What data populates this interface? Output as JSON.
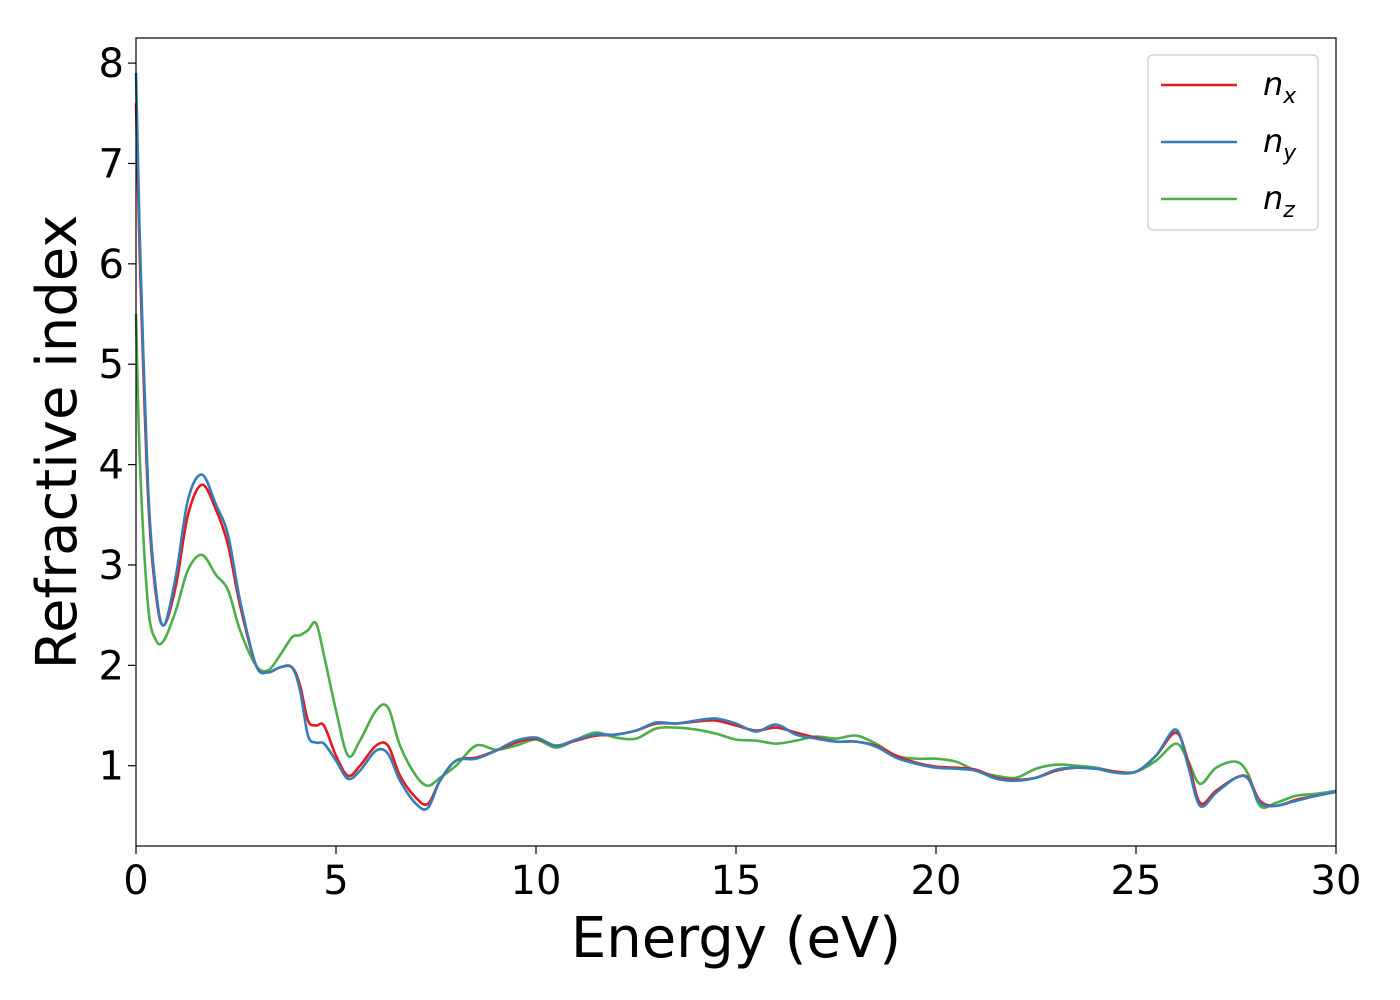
{
  "chart_data": {
    "type": "line",
    "xlabel": "Energy (eV)",
    "ylabel": "Refractive index",
    "xlim": [
      0,
      30
    ],
    "ylim": [
      0.2,
      8.25
    ],
    "xticks": [
      0,
      5,
      10,
      15,
      20,
      25,
      30
    ],
    "xtick_labels": [
      "0",
      "5",
      "10",
      "15",
      "20",
      "25",
      "30"
    ],
    "yticks": [
      1,
      2,
      3,
      4,
      5,
      6,
      7,
      8
    ],
    "ytick_labels": [
      "1",
      "2",
      "3",
      "4",
      "5",
      "6",
      "7",
      "8"
    ],
    "grid": false,
    "legend_position": "top-right",
    "series": [
      {
        "name": "n",
        "subscript": "x",
        "color": "#e41a1c",
        "x": [
          0,
          0.1,
          0.3,
          0.5,
          0.7,
          1.0,
          1.3,
          1.65,
          2.0,
          2.3,
          2.6,
          3.0,
          3.3,
          3.6,
          3.9,
          4.1,
          4.3,
          4.5,
          4.7,
          5.0,
          5.3,
          5.6,
          6.0,
          6.3,
          6.6,
          7.0,
          7.3,
          7.6,
          8.0,
          8.5,
          9.0,
          9.5,
          10.0,
          10.5,
          11.0,
          11.5,
          12.0,
          12.5,
          13.0,
          13.5,
          14.0,
          14.5,
          15.0,
          15.5,
          16.0,
          16.5,
          17.0,
          17.5,
          18.0,
          18.5,
          19.0,
          19.5,
          20.0,
          20.5,
          21.0,
          21.5,
          22.0,
          22.5,
          23.0,
          23.5,
          24.0,
          24.5,
          25.0,
          25.5,
          26.0,
          26.3,
          26.6,
          27.0,
          27.5,
          27.8,
          28.1,
          28.5,
          29.0,
          29.5,
          30.0
        ],
        "y": [
          7.6,
          6.0,
          3.7,
          2.7,
          2.4,
          2.8,
          3.5,
          3.8,
          3.55,
          3.2,
          2.6,
          2.0,
          1.93,
          1.98,
          1.98,
          1.8,
          1.45,
          1.4,
          1.4,
          1.1,
          0.9,
          1.0,
          1.2,
          1.2,
          0.9,
          0.68,
          0.62,
          0.85,
          1.05,
          1.08,
          1.15,
          1.23,
          1.27,
          1.2,
          1.25,
          1.3,
          1.31,
          1.35,
          1.42,
          1.42,
          1.44,
          1.45,
          1.4,
          1.35,
          1.38,
          1.33,
          1.28,
          1.24,
          1.24,
          1.2,
          1.1,
          1.03,
          0.99,
          0.98,
          0.96,
          0.88,
          0.86,
          0.88,
          0.95,
          0.98,
          0.97,
          0.94,
          0.94,
          1.1,
          1.33,
          1.05,
          0.63,
          0.75,
          0.88,
          0.88,
          0.65,
          0.6,
          0.66,
          0.7,
          0.74
        ]
      },
      {
        "name": "n",
        "subscript": "y",
        "color": "#377eb8",
        "x": [
          0,
          0.1,
          0.3,
          0.5,
          0.7,
          1.0,
          1.3,
          1.65,
          2.0,
          2.3,
          2.6,
          3.0,
          3.3,
          3.6,
          3.9,
          4.1,
          4.3,
          4.5,
          4.7,
          5.0,
          5.3,
          5.6,
          6.0,
          6.3,
          6.6,
          7.0,
          7.3,
          7.6,
          8.0,
          8.5,
          9.0,
          9.5,
          10.0,
          10.5,
          11.0,
          11.5,
          12.0,
          12.5,
          13.0,
          13.5,
          14.0,
          14.5,
          15.0,
          15.5,
          16.0,
          16.5,
          17.0,
          17.5,
          18.0,
          18.5,
          19.0,
          19.5,
          20.0,
          20.5,
          21.0,
          21.5,
          22.0,
          22.5,
          23.0,
          23.5,
          24.0,
          24.5,
          25.0,
          25.5,
          26.0,
          26.3,
          26.6,
          27.0,
          27.5,
          27.8,
          28.1,
          28.5,
          29.0,
          29.5,
          30.0
        ],
        "y": [
          7.9,
          6.2,
          3.8,
          2.75,
          2.4,
          2.9,
          3.65,
          3.9,
          3.6,
          3.3,
          2.65,
          2.0,
          1.93,
          1.98,
          1.98,
          1.75,
          1.3,
          1.23,
          1.22,
          1.05,
          0.87,
          0.95,
          1.15,
          1.12,
          0.85,
          0.62,
          0.58,
          0.85,
          1.05,
          1.07,
          1.15,
          1.25,
          1.28,
          1.2,
          1.26,
          1.31,
          1.31,
          1.35,
          1.43,
          1.42,
          1.45,
          1.47,
          1.42,
          1.34,
          1.41,
          1.31,
          1.27,
          1.24,
          1.24,
          1.19,
          1.08,
          1.02,
          0.98,
          0.97,
          0.95,
          0.87,
          0.85,
          0.88,
          0.96,
          0.98,
          0.97,
          0.93,
          0.94,
          1.1,
          1.36,
          1.0,
          0.6,
          0.73,
          0.88,
          0.87,
          0.63,
          0.6,
          0.65,
          0.7,
          0.74
        ]
      },
      {
        "name": "n",
        "subscript": "z",
        "color": "#4daf4a",
        "x": [
          0,
          0.1,
          0.3,
          0.5,
          0.7,
          1.0,
          1.3,
          1.65,
          2.0,
          2.3,
          2.6,
          3.0,
          3.3,
          3.6,
          3.9,
          4.1,
          4.3,
          4.5,
          4.7,
          5.0,
          5.3,
          5.6,
          6.0,
          6.3,
          6.6,
          7.0,
          7.3,
          7.6,
          8.0,
          8.5,
          9.0,
          9.5,
          10.0,
          10.5,
          11.0,
          11.5,
          12.0,
          12.5,
          13.0,
          13.5,
          14.0,
          14.5,
          15.0,
          15.5,
          16.0,
          16.5,
          17.0,
          17.5,
          18.0,
          18.5,
          19.0,
          19.5,
          20.0,
          20.5,
          21.0,
          21.5,
          22.0,
          22.5,
          23.0,
          23.5,
          24.0,
          24.5,
          25.0,
          25.5,
          26.0,
          26.3,
          26.6,
          27.0,
          27.5,
          27.8,
          28.1,
          28.5,
          29.0,
          29.5,
          30.0
        ],
        "y": [
          5.5,
          4.0,
          2.6,
          2.25,
          2.25,
          2.55,
          2.95,
          3.1,
          2.9,
          2.75,
          2.35,
          2.0,
          1.95,
          2.1,
          2.28,
          2.3,
          2.35,
          2.42,
          2.1,
          1.55,
          1.1,
          1.25,
          1.55,
          1.58,
          1.2,
          0.9,
          0.8,
          0.88,
          1.0,
          1.2,
          1.16,
          1.2,
          1.26,
          1.18,
          1.26,
          1.33,
          1.28,
          1.27,
          1.37,
          1.38,
          1.36,
          1.32,
          1.26,
          1.25,
          1.22,
          1.25,
          1.29,
          1.27,
          1.3,
          1.22,
          1.1,
          1.07,
          1.07,
          1.04,
          0.95,
          0.9,
          0.88,
          0.97,
          1.01,
          1.0,
          0.98,
          0.94,
          0.94,
          1.05,
          1.22,
          1.05,
          0.82,
          0.98,
          1.04,
          0.92,
          0.6,
          0.63,
          0.7,
          0.72,
          0.75
        ]
      }
    ]
  }
}
